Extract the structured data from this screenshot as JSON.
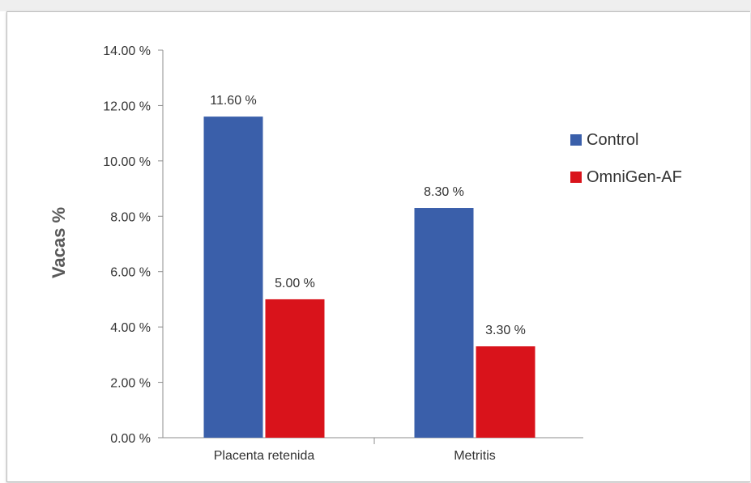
{
  "chart_data": {
    "type": "bar",
    "categories": [
      "Placenta retenida",
      "Metritis"
    ],
    "series": [
      {
        "name": "Control",
        "color": "#3a5faa",
        "values": [
          11.6,
          8.3
        ],
        "labels": [
          "11.60 %",
          "8.30 %"
        ]
      },
      {
        "name": "OmniGen-AF",
        "color": "#d9131b",
        "values": [
          5.0,
          3.3
        ],
        "labels": [
          "5.00 %",
          "3.30 %"
        ]
      }
    ],
    "ylabel": "Vacas %",
    "ylim": [
      0,
      14
    ],
    "yticks": [
      0,
      2,
      4,
      6,
      8,
      10,
      12,
      14
    ],
    "ytick_labels": [
      "0.00 %",
      "2.00 %",
      "4.00 %",
      "6.00 %",
      "8.00 %",
      "10.00 %",
      "12.00 %",
      "14.00 %"
    ],
    "legend_position": "right",
    "grid": false
  }
}
